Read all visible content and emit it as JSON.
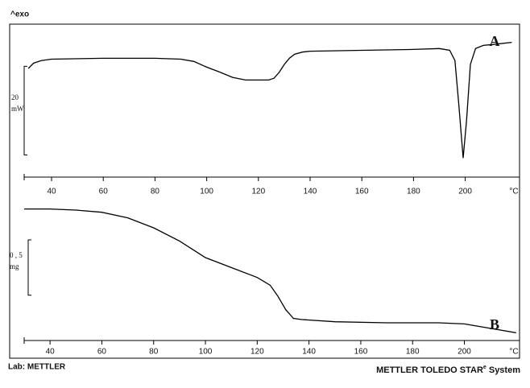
{
  "chart_data": [
    {
      "type": "line",
      "y_direction_label": "^exo",
      "annotation": "A",
      "scale_bar": {
        "from": 0,
        "to": 20
      },
      "scale_label": [
        "20",
        "mW"
      ],
      "x_unit": "°C",
      "xlim": [
        29.4,
        221
      ],
      "xticks": [
        40,
        60,
        80,
        100,
        120,
        140,
        160,
        180,
        200
      ],
      "ylim": [
        -5,
        29.5
      ],
      "color": "#000000",
      "x": [
        31,
        33,
        36,
        40,
        60,
        80,
        90,
        95,
        100,
        105,
        110,
        115,
        120,
        124,
        126,
        128,
        130,
        132,
        134,
        137,
        140,
        160,
        180,
        190,
        194,
        196,
        197.5,
        199.2,
        200.5,
        202,
        204,
        207,
        212,
        218
      ],
      "values": [
        19.5,
        20.7,
        21.3,
        21.6,
        21.8,
        21.8,
        21.6,
        21.1,
        19.8,
        18.7,
        17.5,
        16.9,
        16.9,
        16.9,
        17.3,
        18.6,
        20.4,
        21.8,
        22.7,
        23.2,
        23.4,
        23.6,
        23.8,
        24.0,
        23.6,
        21.3,
        11.4,
        -0.7,
        7.7,
        20.4,
        24.0,
        24.7,
        25.0,
        25.4
      ]
    },
    {
      "type": "line",
      "annotation": "B",
      "scale_bar": {
        "from": 0,
        "to": 0.5
      },
      "scale_label": [
        "0 , 5",
        "mg"
      ],
      "x_unit": "°C",
      "xlim": [
        30,
        221.3
      ],
      "xticks": [
        40,
        60,
        80,
        100,
        120,
        140,
        160,
        180,
        200
      ],
      "ylim": [
        -0.41,
        0.85
      ],
      "color": "#000000",
      "x": [
        30,
        40,
        50,
        60,
        70,
        80,
        90,
        100,
        110,
        120,
        125,
        128,
        131,
        134,
        137,
        150,
        170,
        190,
        200,
        210,
        220
      ],
      "values": [
        0.78,
        0.78,
        0.77,
        0.75,
        0.7,
        0.61,
        0.49,
        0.34,
        0.25,
        0.16,
        0.09,
        -0.01,
        -0.13,
        -0.21,
        -0.22,
        -0.24,
        -0.25,
        -0.25,
        -0.26,
        -0.3,
        -0.34
      ]
    }
  ],
  "footer": {
    "left": "Lab: METTLER",
    "right_main": "METTLER TOLEDO STAR",
    "right_sup": "e",
    "right_end": " System"
  }
}
